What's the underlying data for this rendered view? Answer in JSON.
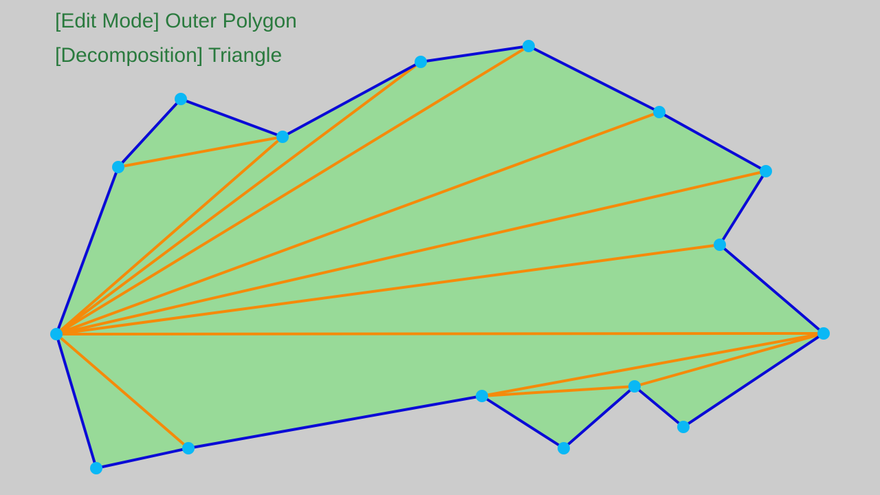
{
  "hud": {
    "mode_line": "[Edit Mode] Outer Polygon",
    "decomposition_line": "[Decomposition] Triangle"
  },
  "colors": {
    "background": "#cccccc",
    "fill": "#98da98",
    "outline": "#0a0ad6",
    "diagonal": "#f58a0a",
    "vertex": "#0ab8f5",
    "hud_text": "#2a7a3e"
  }
}
